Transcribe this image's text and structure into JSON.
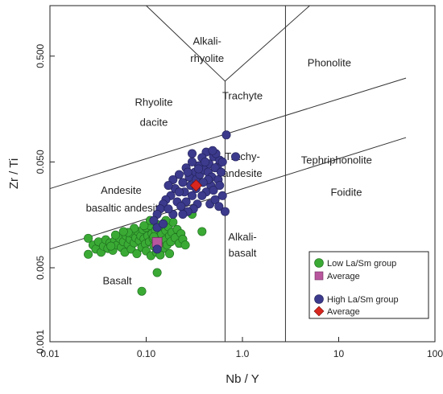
{
  "chart_data": {
    "type": "scatter",
    "xlabel": "Nb / Y",
    "ylabel": "Zr / Ti",
    "x_scale": "log",
    "y_scale": "log",
    "xlim": [
      0.01,
      100
    ],
    "ylim": [
      0.001,
      1.5
    ],
    "x_ticks": [
      "0.01",
      "0.10",
      "1.0",
      "10",
      "100"
    ],
    "y_ticks": [
      "0.001",
      "0.005",
      "0.050",
      "0.500"
    ],
    "grid": false,
    "legend_position": "bottom-right",
    "field_labels": [
      {
        "text": "Alkali-",
        "x": 0.43,
        "y": 0.64
      },
      {
        "text": "rhyolite",
        "x": 0.43,
        "y": 0.44
      },
      {
        "text": "Phonolite",
        "x": 8.0,
        "y": 0.4
      },
      {
        "text": "Rhyolite",
        "x": 0.12,
        "y": 0.17
      },
      {
        "text": "dacite",
        "x": 0.12,
        "y": 0.11
      },
      {
        "text": "Trachyte",
        "x": 1.0,
        "y": 0.195
      },
      {
        "text": "Trachy-",
        "x": 1.0,
        "y": 0.052
      },
      {
        "text": "andesite",
        "x": 1.0,
        "y": 0.036
      },
      {
        "text": "Tephriphonolite",
        "x": 9.5,
        "y": 0.048
      },
      {
        "text": "Andesite",
        "x": 0.055,
        "y": 0.025
      },
      {
        "text": "basaltic andesite",
        "x": 0.06,
        "y": 0.017
      },
      {
        "text": "Foidite",
        "x": 12.0,
        "y": 0.024
      },
      {
        "text": "Alkali-",
        "x": 1.0,
        "y": 0.0091
      },
      {
        "text": "basalt",
        "x": 1.0,
        "y": 0.0064
      },
      {
        "text": "Basalt",
        "x": 0.05,
        "y": 0.0035
      }
    ],
    "series": [
      {
        "name": "Low La/Sm group",
        "color": "#3aaa35",
        "marker": "circle",
        "points": [
          [
            0.025,
            0.0095
          ],
          [
            0.028,
            0.0082
          ],
          [
            0.025,
            0.0067
          ],
          [
            0.03,
            0.0075
          ],
          [
            0.032,
            0.0088
          ],
          [
            0.034,
            0.007
          ],
          [
            0.036,
            0.008
          ],
          [
            0.038,
            0.0092
          ],
          [
            0.04,
            0.0076
          ],
          [
            0.042,
            0.0086
          ],
          [
            0.045,
            0.0073
          ],
          [
            0.047,
            0.009
          ],
          [
            0.05,
            0.0082
          ],
          [
            0.053,
            0.0095
          ],
          [
            0.055,
            0.0078
          ],
          [
            0.058,
            0.0088
          ],
          [
            0.06,
            0.007
          ],
          [
            0.062,
            0.01
          ],
          [
            0.065,
            0.0083
          ],
          [
            0.068,
            0.0093
          ],
          [
            0.07,
            0.0075
          ],
          [
            0.072,
            0.0105
          ],
          [
            0.075,
            0.0086
          ],
          [
            0.078,
            0.0096
          ],
          [
            0.08,
            0.0068
          ],
          [
            0.082,
            0.011
          ],
          [
            0.085,
            0.009
          ],
          [
            0.088,
            0.01
          ],
          [
            0.09,
            0.0078
          ],
          [
            0.092,
            0.0115
          ],
          [
            0.095,
            0.0094
          ],
          [
            0.098,
            0.0084
          ],
          [
            0.1,
            0.012
          ],
          [
            0.1,
            0.0072
          ],
          [
            0.104,
            0.01
          ],
          [
            0.108,
            0.0088
          ],
          [
            0.11,
            0.0125
          ],
          [
            0.112,
            0.0065
          ],
          [
            0.115,
            0.0105
          ],
          [
            0.118,
            0.0095
          ],
          [
            0.12,
            0.008
          ],
          [
            0.125,
            0.0112
          ],
          [
            0.128,
            0.007
          ],
          [
            0.13,
            0.0128
          ],
          [
            0.135,
            0.0098
          ],
          [
            0.138,
            0.0086
          ],
          [
            0.14,
            0.0118
          ],
          [
            0.145,
            0.0104
          ],
          [
            0.15,
            0.0076
          ],
          [
            0.152,
            0.0132
          ],
          [
            0.158,
            0.0092
          ],
          [
            0.16,
            0.0112
          ],
          [
            0.165,
            0.0082
          ],
          [
            0.17,
            0.0122
          ],
          [
            0.175,
            0.01
          ],
          [
            0.18,
            0.0088
          ],
          [
            0.185,
            0.0108
          ],
          [
            0.19,
            0.0135
          ],
          [
            0.2,
            0.0096
          ],
          [
            0.21,
            0.0115
          ],
          [
            0.22,
            0.0085
          ],
          [
            0.23,
            0.0105
          ],
          [
            0.24,
            0.0093
          ],
          [
            0.11,
            0.014
          ],
          [
            0.095,
            0.0125
          ],
          [
            0.075,
            0.0118
          ],
          [
            0.065,
            0.0108
          ],
          [
            0.058,
            0.011
          ],
          [
            0.048,
            0.0102
          ],
          [
            0.043,
            0.008
          ],
          [
            0.14,
            0.0066
          ],
          [
            0.12,
            0.0098
          ],
          [
            0.16,
            0.014
          ],
          [
            0.255,
            0.0082
          ],
          [
            0.175,
            0.0068
          ],
          [
            0.3,
            0.016
          ],
          [
            0.38,
            0.011
          ],
          [
            0.13,
            0.0045
          ],
          [
            0.09,
            0.003
          ]
        ]
      },
      {
        "name": "Average",
        "color": "#b8569e",
        "marker": "square",
        "points": [
          [
            0.13,
            0.0087
          ]
        ]
      },
      {
        "name": "High La/Sm group",
        "color": "#3b3a8c",
        "marker": "circle",
        "points": [
          [
            0.68,
            0.09
          ],
          [
            0.55,
            0.045
          ],
          [
            0.42,
            0.062
          ],
          [
            0.5,
            0.056
          ],
          [
            0.58,
            0.052
          ],
          [
            0.45,
            0.048
          ],
          [
            0.38,
            0.055
          ],
          [
            0.35,
            0.046
          ],
          [
            0.32,
            0.04
          ],
          [
            0.3,
            0.05
          ],
          [
            0.28,
            0.036
          ],
          [
            0.26,
            0.044
          ],
          [
            0.24,
            0.032
          ],
          [
            0.22,
            0.038
          ],
          [
            0.2,
            0.028
          ],
          [
            0.19,
            0.034
          ],
          [
            0.18,
            0.024
          ],
          [
            0.17,
            0.03
          ],
          [
            0.16,
            0.022
          ],
          [
            0.15,
            0.02
          ],
          [
            0.14,
            0.018
          ],
          [
            0.13,
            0.016
          ],
          [
            0.12,
            0.014
          ],
          [
            0.13,
            0.012
          ],
          [
            0.15,
            0.013
          ],
          [
            0.21,
            0.021
          ],
          [
            0.25,
            0.026
          ],
          [
            0.29,
            0.03
          ],
          [
            0.33,
            0.034
          ],
          [
            0.36,
            0.038
          ],
          [
            0.4,
            0.042
          ],
          [
            0.44,
            0.04
          ],
          [
            0.48,
            0.036
          ],
          [
            0.52,
            0.044
          ],
          [
            0.56,
            0.034
          ],
          [
            0.6,
            0.04
          ],
          [
            0.47,
            0.03
          ],
          [
            0.42,
            0.026
          ],
          [
            0.38,
            0.024
          ],
          [
            0.34,
            0.02
          ],
          [
            0.31,
            0.018
          ],
          [
            0.27,
            0.017
          ],
          [
            0.24,
            0.016
          ],
          [
            0.46,
            0.02
          ],
          [
            0.52,
            0.022
          ],
          [
            0.57,
            0.019
          ],
          [
            0.62,
            0.024
          ],
          [
            0.5,
            0.027
          ],
          [
            0.44,
            0.034
          ],
          [
            0.39,
            0.032
          ],
          [
            0.33,
            0.028
          ],
          [
            0.3,
            0.024
          ],
          [
            0.26,
            0.021
          ],
          [
            0.23,
            0.019
          ],
          [
            0.19,
            0.016
          ],
          [
            0.17,
            0.018
          ],
          [
            0.35,
            0.043
          ],
          [
            0.41,
            0.05
          ],
          [
            0.53,
            0.06
          ],
          [
            0.62,
            0.05
          ],
          [
            0.58,
            0.03
          ],
          [
            0.27,
            0.04
          ],
          [
            0.22,
            0.026
          ],
          [
            0.3,
            0.06
          ],
          [
            0.49,
            0.064
          ],
          [
            0.85,
            0.056
          ],
          [
            0.66,
            0.017
          ],
          [
            0.13,
            0.0075
          ]
        ]
      },
      {
        "name": "Average",
        "color": "#d7261e",
        "marker": "diamond",
        "points": [
          [
            0.33,
            0.03
          ]
        ]
      }
    ],
    "legend": {
      "entries": [
        {
          "label": "Low La/Sm group",
          "marker": "circle",
          "color": "#3aaa35"
        },
        {
          "label": "Average",
          "marker": "square",
          "color": "#b8569e"
        },
        {
          "label": "High La/Sm group",
          "marker": "circle",
          "color": "#3b3a8c"
        },
        {
          "label": "Average",
          "marker": "diamond",
          "color": "#d7261e"
        }
      ]
    },
    "boundaries": [
      [
        [
          0.01,
          0.028
        ],
        [
          50,
          0.31
        ]
      ],
      [
        [
          0.01,
          0.0075
        ],
        [
          50,
          0.085
        ]
      ],
      [
        [
          0.66,
          0.001
        ],
        [
          0.66,
          0.29
        ]
      ],
      [
        [
          2.8,
          0.001
        ],
        [
          2.8,
          1.5
        ]
      ],
      [
        [
          0.1,
          1.5
        ],
        [
          0.66,
          0.29
        ]
      ],
      [
        [
          0.66,
          0.29
        ],
        [
          5.0,
          1.5
        ]
      ]
    ]
  }
}
